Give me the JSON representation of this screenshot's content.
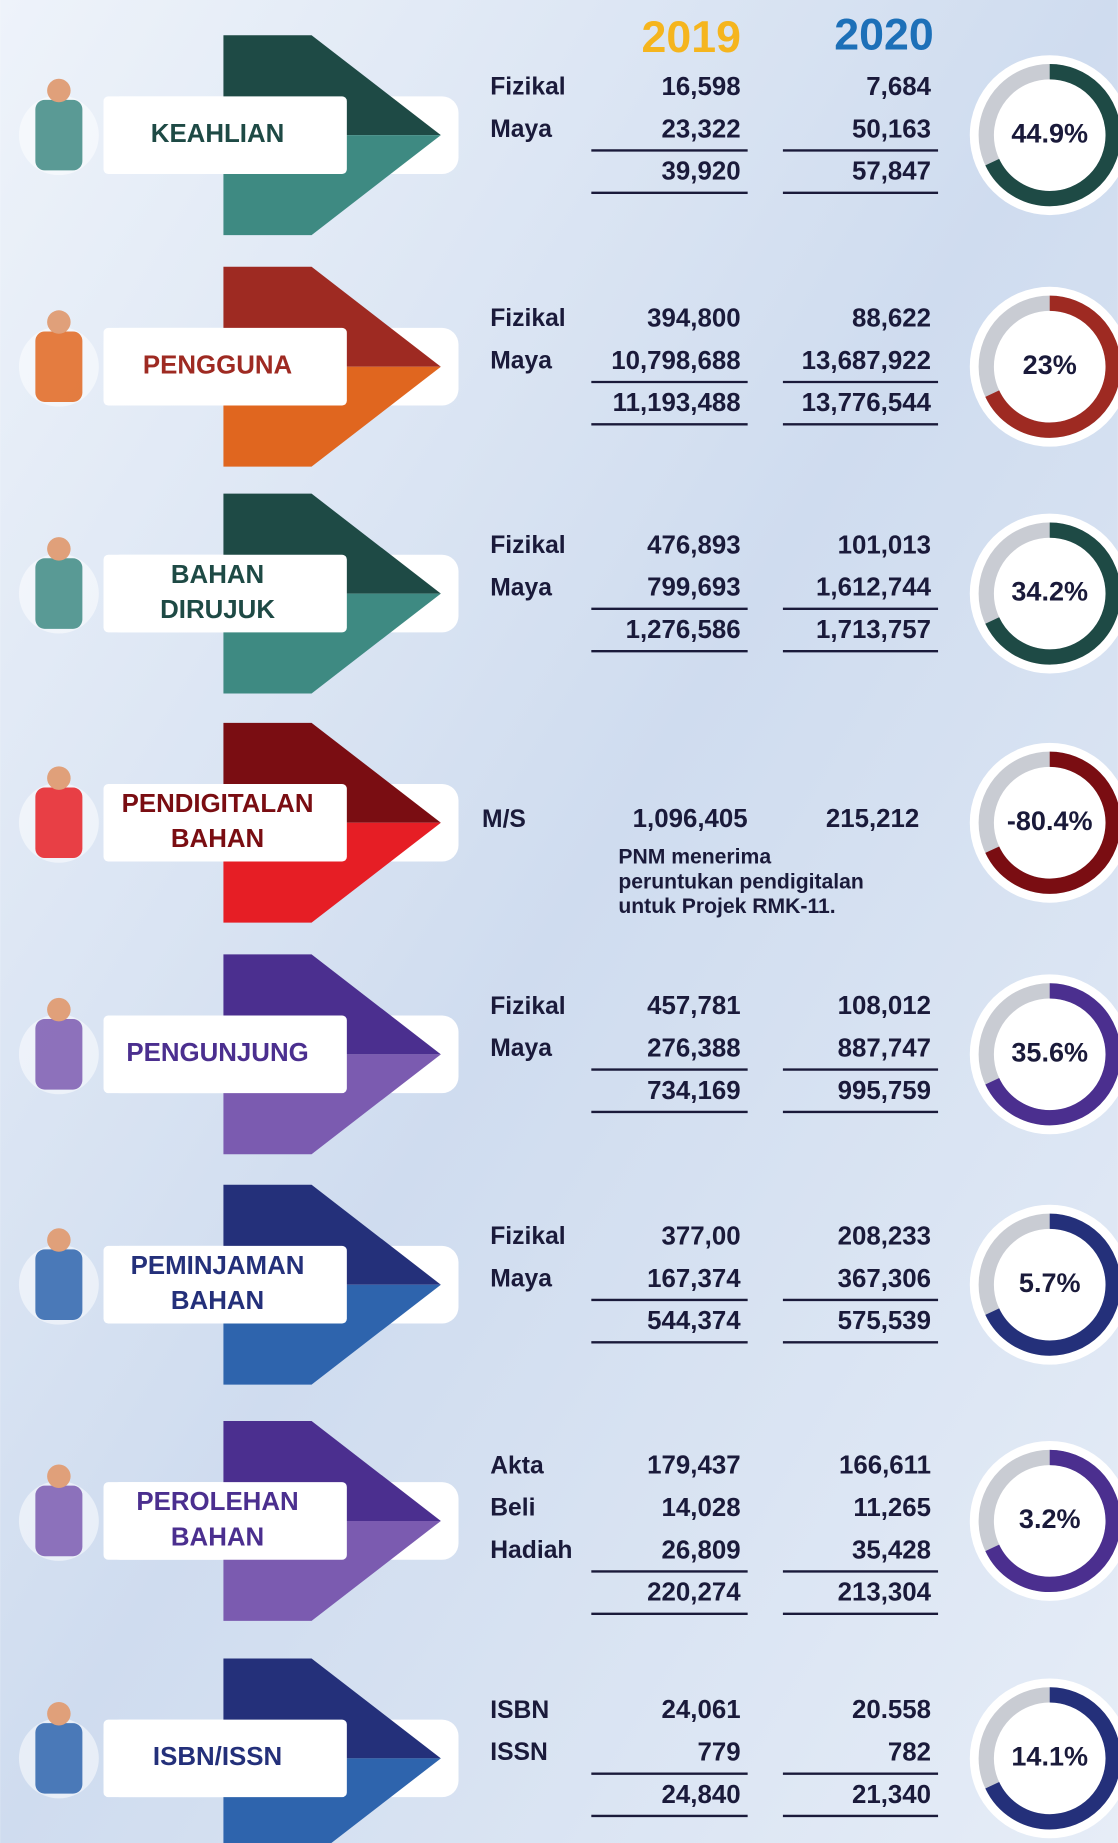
{
  "header": {
    "year1": "2019",
    "year2": "2020"
  },
  "sections": [
    {
      "label": [
        "KEAHLIAN"
      ],
      "items": [
        {
          "label": "Fizikal",
          "v2019": "16,598",
          "v2020": "7,684"
        },
        {
          "label": "Maya",
          "v2019": "23,322",
          "v2020": "50,163"
        }
      ],
      "total": {
        "v2019": "39,920",
        "v2020": "57,847"
      },
      "percent": "44.9%",
      "colors": [
        "#1e4a45",
        "#3e8a82"
      ]
    },
    {
      "label": [
        "PENGGUNA"
      ],
      "items": [
        {
          "label": "Fizikal",
          "v2019": "394,800",
          "v2020": "88,622"
        },
        {
          "label": "Maya",
          "v2019": "10,798,688",
          "v2020": "13,687,922"
        }
      ],
      "total": {
        "v2019": "11,193,488",
        "v2020": "13,776,544"
      },
      "percent": "23%",
      "colors": [
        "#9e2a22",
        "#e0661f"
      ]
    },
    {
      "label": [
        "BAHAN",
        "DIRUJUK"
      ],
      "items": [
        {
          "label": "Fizikal",
          "v2019": "476,893",
          "v2020": "101,013"
        },
        {
          "label": "Maya",
          "v2019": "799,693",
          "v2020": "1,612,744"
        }
      ],
      "total": {
        "v2019": "1,276,586",
        "v2020": "1,713,757"
      },
      "percent": "34.2%",
      "colors": [
        "#1e4a45",
        "#3e8a82"
      ]
    },
    {
      "label": [
        "PENDIGITALAN",
        "BAHAN"
      ],
      "items": [
        {
          "label": "M/S",
          "v2019": "1,096,405",
          "v2020": "215,212"
        }
      ],
      "note": [
        "PNM menerima",
        "peruntukan pendigitalan",
        "untuk Projek RMK-11."
      ],
      "percent": "-80.4%",
      "colors": [
        "#7a0d12",
        "#e61e25"
      ]
    },
    {
      "label": [
        "PENGUNJUNG"
      ],
      "items": [
        {
          "label": "Fizikal",
          "v2019": "457,781",
          "v2020": "108,012"
        },
        {
          "label": "Maya",
          "v2019": "276,388",
          "v2020": "887,747"
        }
      ],
      "total": {
        "v2019": "734,169",
        "v2020": "995,759"
      },
      "percent": "35.6%",
      "colors": [
        "#4b2f8f",
        "#7b5bb0"
      ]
    },
    {
      "label": [
        "PEMINJAMAN",
        "BAHAN"
      ],
      "items": [
        {
          "label": "Fizikal",
          "v2019": "377,00",
          "v2020": "208,233"
        },
        {
          "label": "Maya",
          "v2019": "167,374",
          "v2020": "367,306"
        }
      ],
      "total": {
        "v2019": "544,374",
        "v2020": "575,539"
      },
      "percent": "5.7%",
      "colors": [
        "#24307a",
        "#2e64ad"
      ]
    },
    {
      "label": [
        "PEROLEHAN",
        "BAHAN"
      ],
      "items": [
        {
          "label": "Akta",
          "v2019": "179,437",
          "v2020": "166,611"
        },
        {
          "label": "Beli",
          "v2019": "14,028",
          "v2020": "11,265"
        },
        {
          "label": "Hadiah",
          "v2019": "26,809",
          "v2020": "35,428"
        }
      ],
      "total": {
        "v2019": "220,274",
        "v2020": "213,304"
      },
      "percent": "3.2%",
      "colors": [
        "#4b2f8f",
        "#7b5bb0"
      ]
    },
    {
      "label": [
        "ISBN/ISSN"
      ],
      "items": [
        {
          "label": "ISBN",
          "v2019": "24,061",
          "v2020": "20.558"
        },
        {
          "label": "ISSN",
          "v2019": "779",
          "v2020": "782"
        }
      ],
      "total": {
        "v2019": "24,840",
        "v2020": "21,340"
      },
      "percent": "14.1%",
      "colors": [
        "#24307a",
        "#2e64ad"
      ]
    }
  ]
}
